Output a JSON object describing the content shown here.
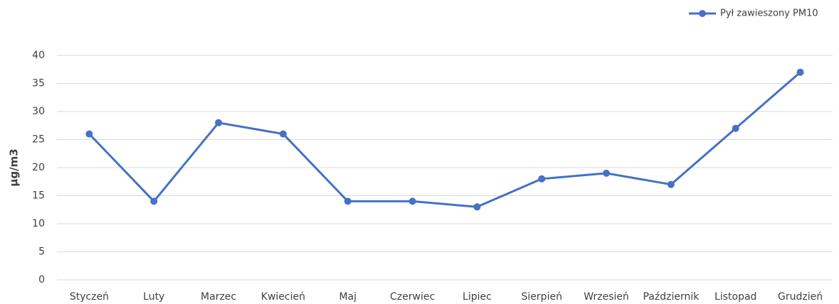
{
  "chart_data": {
    "type": "line",
    "y_label": "µg/m3",
    "categories": [
      "Styczeń",
      "Luty",
      "Marzec",
      "Kwiecień",
      "Maj",
      "Czerwiec",
      "Lipiec",
      "Sierpień",
      "Wrzesień",
      "Październik",
      "Listopad",
      "Grudzień"
    ],
    "series": [
      {
        "name": "Pył zawieszony PM10",
        "color": "#4472c4",
        "values": [
          26,
          14,
          28,
          26,
          14,
          14,
          13,
          18,
          19,
          17,
          27,
          37
        ]
      }
    ],
    "ylim": [
      0,
      40
    ],
    "yticks": [
      0,
      5,
      10,
      15,
      20,
      25,
      30,
      35,
      40
    ],
    "grid": true,
    "legend": "top-right"
  }
}
